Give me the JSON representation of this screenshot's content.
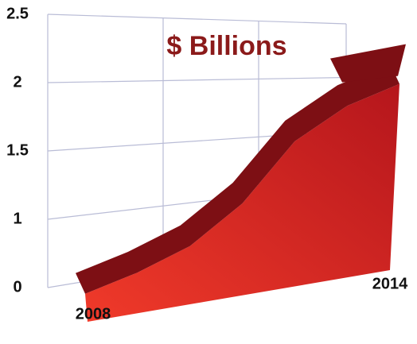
{
  "chart_data": {
    "type": "area",
    "title": "$ Billions",
    "categories": [
      "2008",
      null,
      null,
      null,
      null,
      null,
      "2014"
    ],
    "values": [
      0.1,
      0.3,
      0.6,
      1.1,
      1.6,
      1.9,
      2.1
    ],
    "color": "#d42a22",
    "ribbon_color": "#7d0f14",
    "ylim": [
      0,
      2.5
    ],
    "yticks": [
      0,
      1,
      1.5,
      2,
      2.5
    ],
    "grid": true
  }
}
